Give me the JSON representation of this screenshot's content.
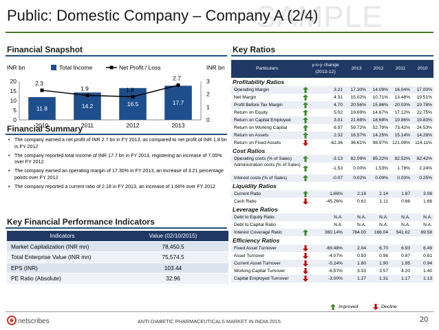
{
  "slide": {
    "title": "Public: Domestic Company – Company A (2/4)",
    "watermark": "SAMPLE",
    "footer": "ANTI-DIABETIC PHARMACEUTICALS MARKET IN INDIA 2015",
    "page_number": "20",
    "logo_text": "netscribes",
    "accent_color": "#4a7a2a",
    "header_color": "#1f3864"
  },
  "snapshot": {
    "title": "Financial Snapshot"
  },
  "chart_data": {
    "type": "bar",
    "categories": [
      "2010",
      "2011",
      "2012",
      "2013"
    ],
    "series": [
      {
        "name": "Total Income",
        "kind": "bar",
        "axis": "left",
        "values": [
          11.8,
          14.2,
          16.5,
          17.7
        ],
        "color": "#1f4e8c"
      },
      {
        "name": "Net Profit / Loss",
        "kind": "line",
        "axis": "right",
        "values": [
          2.3,
          1.9,
          1.8,
          2.7
        ],
        "color": "#000000"
      }
    ],
    "ylabel_left": "INR bn",
    "ylabel_right": "INR bn",
    "ylim_left": [
      0,
      20
    ],
    "ylim_right": [
      0,
      3
    ],
    "yticks_left": [
      "0",
      "5",
      "10",
      "15",
      "20"
    ],
    "yticks_right": [
      "0",
      "1",
      "2",
      "3"
    ],
    "legend": "top-center",
    "grid": false
  },
  "summary": {
    "title": "Financial Summary",
    "bullets": [
      "The company earned a net profit of INR 2.7 bn in FY 2013, as compared to net profit of INR 1.8 bn in FY 2012",
      "The company reported total Income of INR 17.7 bn in FY 2013, registering an increase of 7.05% over FY 2012",
      "The company earned an operating margin of 17.30% in FY 2013, an increase of 3.21 percentage points over FY 2012",
      "The company reported a current ratio of 2.18 in FY 2013, an increase of 1.66% over FY 2012"
    ]
  },
  "kfpi": {
    "title": "Key Financial Performance Indicators",
    "col_indicator": "Indicators",
    "col_value": "Value (02/10/2015)",
    "rows": [
      {
        "label": "Market Capitalization (INR mn)",
        "value": "78,450.5"
      },
      {
        "label": "Total Enterprise Value (INR mn)",
        "value": "75,574.5"
      },
      {
        "label": "EPS (INR)",
        "value": "103.44"
      },
      {
        "label": "PE Ratio (Absolute)",
        "value": "32.96"
      }
    ]
  },
  "ratios": {
    "title": "Key Ratios",
    "head": {
      "particulars": "Particulars",
      "yoy_1": "y-o-y change",
      "yoy_2": "(2013-12)",
      "y2013": "2013",
      "y2012": "2012",
      "y2011": "2011",
      "y2010": "2010"
    },
    "legend_improved": "Improved",
    "legend_decline": "Decline",
    "improved_color": "#3b8a2a",
    "decline_color": "#c00000",
    "groups": [
      {
        "name": "Profitability Ratios",
        "rows": [
          {
            "label": "Operating Margin",
            "dir": "up",
            "yoy": "3.21",
            "v2013": "17.30%",
            "v2012": "14.09%",
            "v2011": "16.04%",
            "v2010": "17.00%"
          },
          {
            "label": "Net Margin",
            "dir": "up",
            "yoy": "4.31",
            "v2013": "15.02%",
            "v2012": "10.71%",
            "v2011": "13.48%",
            "v2010": "19.51%"
          },
          {
            "label": "Profit Before Tax Margin",
            "dir": "up",
            "yoy": "4.70",
            "v2013": "20.56%",
            "v2012": "15.86%",
            "v2011": "20.03%",
            "v2010": "19.78%"
          },
          {
            "label": "Return on Equity",
            "dir": "up",
            "yoy": "5.02",
            "v2013": "19.69%",
            "v2012": "14.67%",
            "v2011": "17.12%",
            "v2010": "22.75%"
          },
          {
            "label": "Return on Capital Employed",
            "dir": "up",
            "yoy": "3.01",
            "v2013": "21.68%",
            "v2012": "18.68%",
            "v2011": "19.86%",
            "v2010": "19.83%"
          },
          {
            "label": "Return on Working Capital",
            "dir": "up",
            "yoy": "6.97",
            "v2013": "59.72%",
            "v2012": "52.79%",
            "v2011": "73.42%",
            "v2010": "24.53%"
          },
          {
            "label": "Return on Assets",
            "dir": "up",
            "yoy": "2.32",
            "v2013": "16.57%",
            "v2012": "14.25%",
            "v2011": "15.14%",
            "v2010": "14.28%"
          },
          {
            "label": "Return on Fixed Assets",
            "dir": "down",
            "yoy": "-62.36",
            "v2013": "36.61%",
            "v2012": "98.97%",
            "v2011": "121.08%",
            "v2010": "114.11%"
          }
        ]
      },
      {
        "name": "Cost Ratios",
        "rows": [
          {
            "label": "Operating costs (% of Sales)",
            "dir": "up",
            "yoy": "-3.13",
            "v2013": "82.09%",
            "v2012": "85.22%",
            "v2011": "82.52%",
            "v2010": "82.42%"
          },
          {
            "label": "Administration costs (% of Sales)",
            "dir": "up",
            "yoy": "-1.53",
            "v2013": "0.00%",
            "v2012": "1.53%",
            "v2011": "1.78%",
            "v2010": "2.24%",
            "tall": true
          },
          {
            "label": "Interest costs (% of Sales)",
            "dir": "up",
            "yoy": "-0.07",
            "v2013": "0.02%",
            "v2012": "0.09%",
            "v2011": "0.03%",
            "v2010": "0.25%"
          }
        ]
      },
      {
        "name": "Liquidity Ratios",
        "rows": [
          {
            "label": "Current Ratio",
            "dir": "up",
            "yoy": "1.66%",
            "v2013": "2.18",
            "v2012": "2.14",
            "v2011": "1.87",
            "v2010": "3.08"
          },
          {
            "label": "Cash Ratio",
            "dir": "down",
            "yoy": "-45.26%",
            "v2013": "0.61",
            "v2012": "1.11",
            "v2011": "0.66",
            "v2010": "1.66"
          }
        ]
      },
      {
        "name": "Leverage Ratios",
        "rows": [
          {
            "label": "Debt to Equity Ratio",
            "dir": "none",
            "yoy": "N.A.",
            "v2013": "N.A.",
            "v2012": "N.A.",
            "v2011": "N.A.",
            "v2010": "N.A."
          },
          {
            "label": "Debt to Capital Ratio",
            "dir": "none",
            "yoy": "N.A.",
            "v2013": "N.A.",
            "v2012": "N.A.",
            "v2011": "N.A.",
            "v2010": "N.A."
          },
          {
            "label": "Interest Coverage Ratio",
            "dir": "up",
            "yoy": "360.14%",
            "v2013": "764.00",
            "v2012": "166.04",
            "v2011": "541.62",
            "v2010": "69.58"
          }
        ]
      },
      {
        "name": "Efficiency Ratios",
        "rows": [
          {
            "label": "Fixed Asset Turnover",
            "dir": "down",
            "yoy": "-69.48%",
            "v2013": "2.04",
            "v2012": "6.70",
            "v2011": "6.93",
            "v2010": "6.49"
          },
          {
            "label": "Asset Turnover",
            "dir": "down",
            "yoy": "-4.07%",
            "v2013": "0.93",
            "v2012": "0.96",
            "v2011": "0.87",
            "v2010": "0.81"
          },
          {
            "label": "Current Asset Turnover",
            "dir": "down",
            "yoy": "-5.24%",
            "v2013": "1.80",
            "v2012": "1.90",
            "v2011": "1.95",
            "v2010": "0.94"
          },
          {
            "label": "Working Capital Turnover",
            "dir": "down",
            "yoy": "-6.57%",
            "v2013": "3.33",
            "v2012": "3.57",
            "v2011": "4.20",
            "v2010": "1.40"
          },
          {
            "label": "Capital Employed Turnover",
            "dir": "down",
            "yoy": "-3.00%",
            "v2013": "1.27",
            "v2012": "1.31",
            "v2011": "1.17",
            "v2010": "1.13"
          }
        ]
      }
    ]
  }
}
